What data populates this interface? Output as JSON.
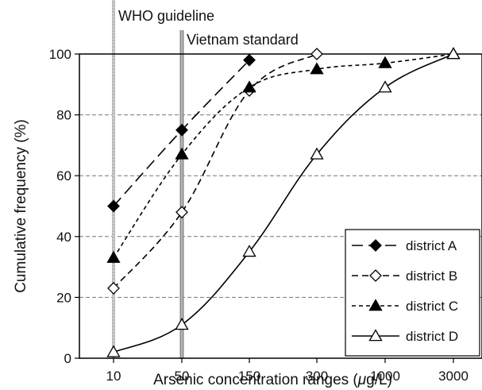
{
  "chart_data": {
    "type": "line",
    "title": "",
    "xlabel_parts": [
      "Arsenic concentration ranges (",
      "μ",
      "g/L)"
    ],
    "ylabel": "Cumulative frequency (%)",
    "categories": [
      "10",
      "50",
      "150",
      "300",
      "1000",
      "3000"
    ],
    "ylim": [
      0,
      100
    ],
    "yticks": [
      "0",
      "20",
      "40",
      "60",
      "80",
      "100"
    ],
    "grid": "horizontal dashed",
    "legend_position": "bottom-right",
    "reference_lines": [
      {
        "label": "WHO guideline",
        "x": "10"
      },
      {
        "label": "Vietnam standard",
        "x": "50"
      }
    ],
    "series": [
      {
        "name": "district A",
        "marker": "filled-diamond",
        "dash": "long-dash",
        "points": [
          [
            10,
            50
          ],
          [
            50,
            75
          ],
          [
            150,
            98
          ]
        ]
      },
      {
        "name": "district B",
        "marker": "open-diamond",
        "dash": "medium-dash",
        "points": [
          [
            10,
            23
          ],
          [
            50,
            48
          ],
          [
            150,
            88
          ],
          [
            300,
            100
          ]
        ]
      },
      {
        "name": "district C",
        "marker": "filled-triangle",
        "dash": "short-dash",
        "points": [
          [
            10,
            33
          ],
          [
            50,
            67
          ],
          [
            150,
            89
          ],
          [
            300,
            95
          ],
          [
            1000,
            97
          ],
          [
            3000,
            100
          ]
        ]
      },
      {
        "name": "district D",
        "marker": "open-triangle",
        "dash": "solid",
        "points": [
          [
            10,
            2
          ],
          [
            50,
            11
          ],
          [
            150,
            35
          ],
          [
            300,
            67
          ],
          [
            1000,
            89
          ],
          [
            3000,
            100
          ]
        ]
      }
    ]
  }
}
